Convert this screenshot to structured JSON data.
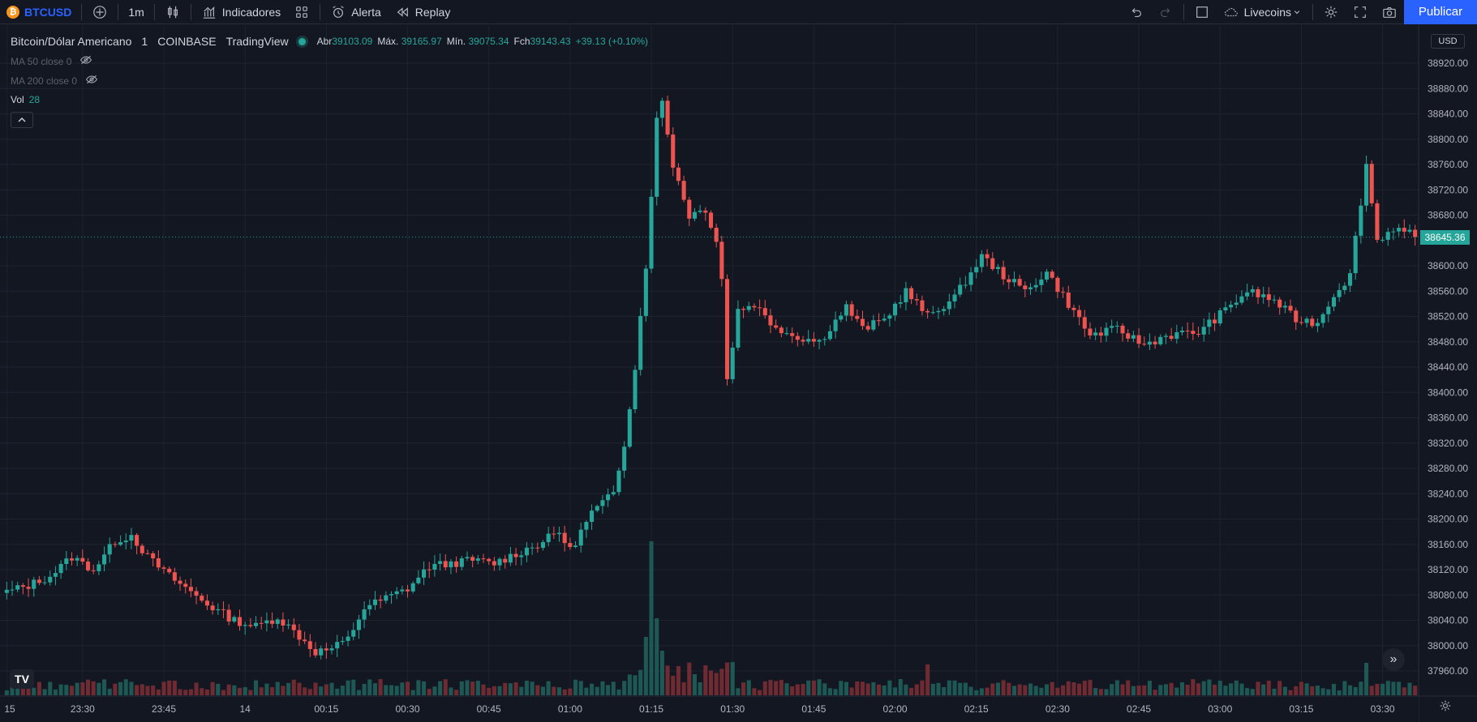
{
  "toolbar": {
    "symbol": "BTCUSD",
    "symbol_logo": "₿",
    "interval": "1m",
    "indicators_label": "Indicadores",
    "alert_label": "Alerta",
    "replay_label": "Replay",
    "layout_name": "Livecoins",
    "publish_label": "Publicar",
    "icons": [
      "plus-circle-icon",
      "candles-icon",
      "indicators-icon",
      "templates-icon",
      "alarm-icon",
      "replay-icon",
      "undo-icon",
      "redo-icon",
      "layout-square-icon",
      "cloud-icon",
      "chevron-down-icon",
      "gear-icon",
      "fullscreen-icon",
      "camera-icon"
    ]
  },
  "legend": {
    "title": "Bitcoin/Dólar Americano",
    "interval": "1",
    "exchange": "COINBASE",
    "source": "TradingView",
    "open_label": "Abr",
    "open": "39103.09",
    "high_label": "Máx.",
    "high": "39165.97",
    "low_label": "Mín.",
    "low": "39075.34",
    "close_label": "Fch",
    "close": "39143.43",
    "change": "+39.13 (+0.10%)",
    "ma50": "MA 50 close 0",
    "ma200": "MA 200 close 0",
    "vol_label": "Vol",
    "vol_value": "28"
  },
  "price_scale": {
    "currency": "USD",
    "last_price": "38645.36",
    "ticks": [
      "38920.00",
      "38880.00",
      "38840.00",
      "38800.00",
      "38760.00",
      "38720.00",
      "38680.00",
      "38600.00",
      "38560.00",
      "38520.00",
      "38480.00",
      "38440.00",
      "38400.00",
      "38360.00",
      "38320.00",
      "38280.00",
      "38240.00",
      "38200.00",
      "38160.00",
      "38120.00",
      "38080.00",
      "38040.00",
      "38000.00",
      "37960.00"
    ]
  },
  "time_scale": {
    "ticks": [
      {
        "label": "15",
        "bar": 0
      },
      {
        "label": "23:30",
        "bar": 14
      },
      {
        "label": "23:45",
        "bar": 29
      },
      {
        "label": "14",
        "bar": 44
      },
      {
        "label": "00:15",
        "bar": 59
      },
      {
        "label": "00:30",
        "bar": 74
      },
      {
        "label": "00:45",
        "bar": 89
      },
      {
        "label": "01:00",
        "bar": 104
      },
      {
        "label": "01:15",
        "bar": 119
      },
      {
        "label": "01:30",
        "bar": 134
      },
      {
        "label": "01:45",
        "bar": 149
      },
      {
        "label": "02:00",
        "bar": 164
      },
      {
        "label": "02:15",
        "bar": 179
      },
      {
        "label": "02:30",
        "bar": 194
      },
      {
        "label": "02:45",
        "bar": 209
      },
      {
        "label": "03:00",
        "bar": 224
      },
      {
        "label": "03:15",
        "bar": 239
      },
      {
        "label": "03:30",
        "bar": 254
      }
    ]
  },
  "chart_data": {
    "type": "candlestick",
    "symbol": "BTCUSD",
    "ylim": [
      37940,
      38960
    ],
    "grid": true,
    "colors": {
      "up": "#26a69a",
      "down": "#ef5350",
      "background": "#131722",
      "grid": "#1f2330"
    },
    "close_anchors": [
      [
        0,
        38085
      ],
      [
        4,
        38095
      ],
      [
        8,
        38110
      ],
      [
        12,
        38140
      ],
      [
        16,
        38120
      ],
      [
        20,
        38165
      ],
      [
        23,
        38175
      ],
      [
        26,
        38140
      ],
      [
        30,
        38110
      ],
      [
        34,
        38085
      ],
      [
        38,
        38060
      ],
      [
        42,
        38040
      ],
      [
        46,
        38030
      ],
      [
        50,
        38045
      ],
      [
        54,
        38015
      ],
      [
        57,
        37990
      ],
      [
        60,
        37995
      ],
      [
        63,
        38010
      ],
      [
        66,
        38060
      ],
      [
        70,
        38075
      ],
      [
        74,
        38090
      ],
      [
        78,
        38125
      ],
      [
        82,
        38130
      ],
      [
        86,
        38135
      ],
      [
        90,
        38130
      ],
      [
        94,
        38145
      ],
      [
        98,
        38160
      ],
      [
        102,
        38180
      ],
      [
        104,
        38150
      ],
      [
        108,
        38210
      ],
      [
        112,
        38240
      ],
      [
        114,
        38320
      ],
      [
        116,
        38440
      ],
      [
        118,
        38600
      ],
      [
        120,
        38830
      ],
      [
        121,
        38860
      ],
      [
        123,
        38760
      ],
      [
        126,
        38680
      ],
      [
        129,
        38690
      ],
      [
        131,
        38640
      ],
      [
        132,
        38580
      ],
      [
        133,
        38420
      ],
      [
        135,
        38530
      ],
      [
        138,
        38540
      ],
      [
        141,
        38510
      ],
      [
        145,
        38490
      ],
      [
        150,
        38480
      ],
      [
        155,
        38535
      ],
      [
        158,
        38500
      ],
      [
        162,
        38515
      ],
      [
        166,
        38560
      ],
      [
        170,
        38520
      ],
      [
        175,
        38550
      ],
      [
        180,
        38615
      ],
      [
        184,
        38585
      ],
      [
        188,
        38560
      ],
      [
        192,
        38590
      ],
      [
        196,
        38540
      ],
      [
        200,
        38490
      ],
      [
        205,
        38500
      ],
      [
        210,
        38475
      ],
      [
        214,
        38490
      ],
      [
        220,
        38495
      ],
      [
        225,
        38530
      ],
      [
        229,
        38560
      ],
      [
        234,
        38545
      ],
      [
        238,
        38515
      ],
      [
        242,
        38510
      ],
      [
        245,
        38555
      ],
      [
        248,
        38585
      ],
      [
        251,
        38760
      ],
      [
        253,
        38640
      ],
      [
        256,
        38660
      ],
      [
        259,
        38650
      ],
      [
        260,
        38645
      ]
    ],
    "volume_spikes": [
      [
        118,
        72
      ],
      [
        119,
        190
      ],
      [
        120,
        95
      ],
      [
        121,
        55
      ],
      [
        170,
        38
      ],
      [
        251,
        40
      ]
    ],
    "last_close": 38645.36
  }
}
